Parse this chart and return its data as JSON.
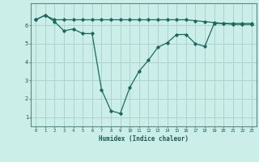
{
  "title": "",
  "xlabel": "Humidex (Indice chaleur)",
  "ylabel": "",
  "bg_color": "#cceee8",
  "grid_color": "#aad4ce",
  "line_color": "#1a6b5e",
  "xlim": [
    -0.5,
    23.5
  ],
  "ylim": [
    0.5,
    7.2
  ],
  "xticks": [
    0,
    1,
    2,
    3,
    4,
    5,
    6,
    7,
    8,
    9,
    10,
    11,
    12,
    13,
    14,
    15,
    16,
    17,
    18,
    19,
    20,
    21,
    22,
    23
  ],
  "yticks": [
    1,
    2,
    3,
    4,
    5,
    6
  ],
  "line1_x": [
    0,
    1,
    2,
    3,
    4,
    5,
    6,
    7,
    8,
    9,
    10,
    11,
    12,
    13,
    14,
    15,
    16,
    17,
    18,
    19,
    20,
    21,
    22,
    23
  ],
  "line1_y": [
    6.3,
    6.55,
    6.3,
    6.3,
    6.3,
    6.3,
    6.3,
    6.3,
    6.3,
    6.3,
    6.3,
    6.3,
    6.3,
    6.3,
    6.3,
    6.3,
    6.3,
    6.25,
    6.2,
    6.15,
    6.1,
    6.1,
    6.1,
    6.1
  ],
  "line2_x": [
    0,
    1,
    2,
    3,
    4,
    5,
    6,
    7,
    8,
    9,
    10,
    11,
    12,
    13,
    14,
    15,
    16,
    17,
    18,
    19,
    20,
    21,
    22,
    23
  ],
  "line2_y": [
    6.3,
    6.55,
    6.2,
    5.7,
    5.8,
    5.55,
    5.55,
    2.5,
    1.35,
    1.2,
    2.6,
    3.5,
    4.1,
    4.8,
    5.05,
    5.5,
    5.5,
    5.0,
    4.85,
    6.1,
    6.1,
    6.05,
    6.05,
    6.05
  ]
}
